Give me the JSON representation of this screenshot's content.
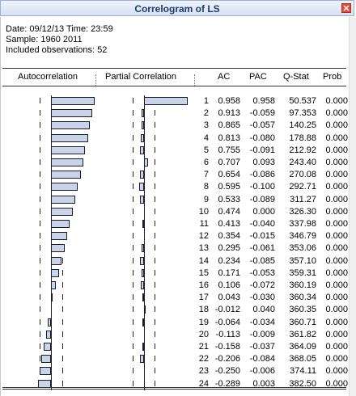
{
  "window": {
    "title": "Correlogram of LS"
  },
  "info": {
    "date_line": "Date: 09/12/13   Time: 23:59",
    "sample_line": "Sample: 1960 2011",
    "obs_line": "Included observations: 52"
  },
  "headers": {
    "autocorrelation": "Autocorrelation",
    "partial_correlation": "Partial Correlation",
    "ac": "AC",
    "pac": "PAC",
    "qstat": "Q-Stat",
    "prob": "Prob"
  },
  "rows": [
    {
      "lag": "1",
      "ac": "0.958",
      "pac": "0.958",
      "q": "50.537",
      "p": "0.000"
    },
    {
      "lag": "2",
      "ac": "0.913",
      "pac": "-0.059",
      "q": "97.353",
      "p": "0.000"
    },
    {
      "lag": "3",
      "ac": "0.865",
      "pac": "-0.057",
      "q": "140.25",
      "p": "0.000"
    },
    {
      "lag": "4",
      "ac": "0.813",
      "pac": "-0.080",
      "q": "178.88",
      "p": "0.000"
    },
    {
      "lag": "5",
      "ac": "0.755",
      "pac": "-0.091",
      "q": "212.92",
      "p": "0.000"
    },
    {
      "lag": "6",
      "ac": "0.707",
      "pac": "0.093",
      "q": "243.40",
      "p": "0.000"
    },
    {
      "lag": "7",
      "ac": "0.654",
      "pac": "-0.086",
      "q": "270.08",
      "p": "0.000"
    },
    {
      "lag": "8",
      "ac": "0.595",
      "pac": "-0.100",
      "q": "292.71",
      "p": "0.000"
    },
    {
      "lag": "9",
      "ac": "0.533",
      "pac": "-0.089",
      "q": "311.27",
      "p": "0.000"
    },
    {
      "lag": "10",
      "ac": "0.474",
      "pac": "0.000",
      "q": "326.30",
      "p": "0.000"
    },
    {
      "lag": "11",
      "ac": "0.413",
      "pac": "-0.040",
      "q": "337.98",
      "p": "0.000"
    },
    {
      "lag": "12",
      "ac": "0.354",
      "pac": "-0.015",
      "q": "346.79",
      "p": "0.000"
    },
    {
      "lag": "13",
      "ac": "0.295",
      "pac": "-0.061",
      "q": "353.06",
      "p": "0.000"
    },
    {
      "lag": "14",
      "ac": "0.234",
      "pac": "-0.085",
      "q": "357.10",
      "p": "0.000"
    },
    {
      "lag": "15",
      "ac": "0.171",
      "pac": "-0.053",
      "q": "359.31",
      "p": "0.000"
    },
    {
      "lag": "16",
      "ac": "0.106",
      "pac": "-0.072",
      "q": "360.19",
      "p": "0.000"
    },
    {
      "lag": "17",
      "ac": "0.043",
      "pac": "-0.030",
      "q": "360.34",
      "p": "0.000"
    },
    {
      "lag": "18",
      "ac": "-0.012",
      "pac": "0.040",
      "q": "360.35",
      "p": "0.000"
    },
    {
      "lag": "19",
      "ac": "-0.064",
      "pac": "-0.034",
      "q": "360.71",
      "p": "0.000"
    },
    {
      "lag": "20",
      "ac": "-0.113",
      "pac": "-0.009",
      "q": "361.82",
      "p": "0.000"
    },
    {
      "lag": "21",
      "ac": "-0.158",
      "pac": "-0.037",
      "q": "364.09",
      "p": "0.000"
    },
    {
      "lag": "22",
      "ac": "-0.206",
      "pac": "-0.084",
      "q": "368.05",
      "p": "0.000"
    },
    {
      "lag": "23",
      "ac": "-0.250",
      "pac": "-0.006",
      "q": "374.11",
      "p": "0.000"
    },
    {
      "lag": "24",
      "ac": "-0.289",
      "pac": "0.003",
      "q": "382.50",
      "p": "0.000"
    }
  ],
  "colors": {
    "bar_fill": "#c9d4e6",
    "bar_stroke": "#1a1a2e",
    "title_text": "#1e3b6b"
  }
}
